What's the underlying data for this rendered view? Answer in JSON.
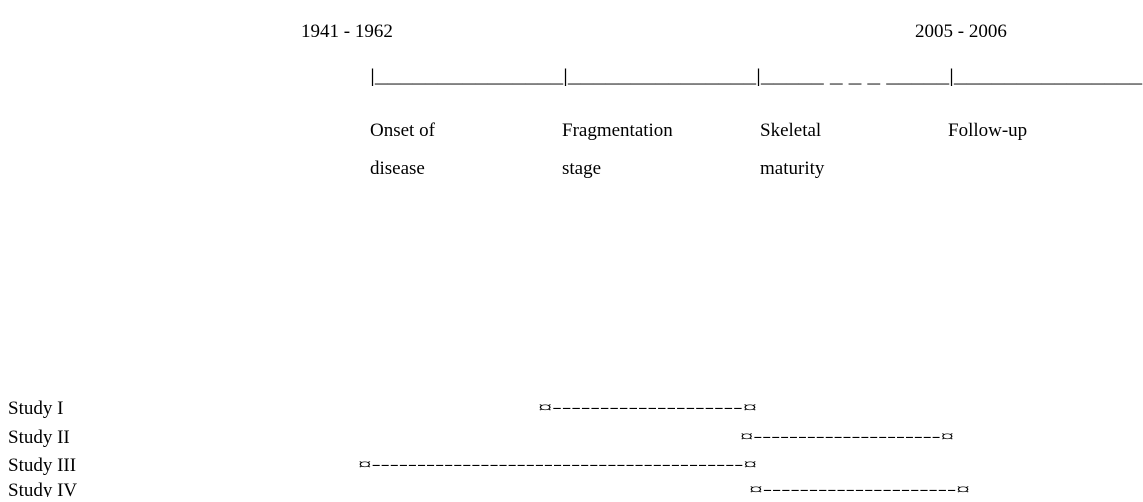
{
  "timeline": {
    "start_period": "1941 - 1962",
    "end_period": "2005 - 2006",
    "axis": "|_______________|_______________|_____ _ _ _ _____|_______________",
    "stages": [
      {
        "line1": "Onset of",
        "line2": "disease"
      },
      {
        "line1": "Fragmentation",
        "line2": "stage"
      },
      {
        "line1": "Skeletal",
        "line2": "maturity"
      },
      {
        "line1": "Follow-up"
      }
    ]
  },
  "studies": [
    {
      "name": "Study I",
      "span": "¤--------------------¤"
    },
    {
      "name": "Study II",
      "span": "¤---------------------¤"
    },
    {
      "name": "Study III",
      "span": "¤-----------------------------------------¤"
    },
    {
      "name": "Study IV",
      "span": "¤---------------------¤"
    }
  ]
}
